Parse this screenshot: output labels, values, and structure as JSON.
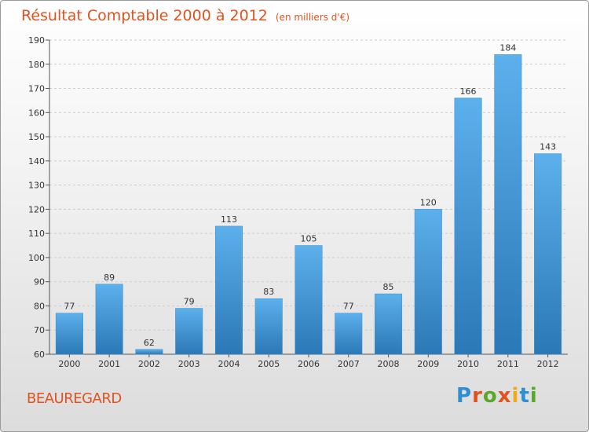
{
  "title": "Résultat Comptable 2000 à 2012",
  "subtitle": "(en milliers d'€)",
  "place": "BEAUREGARD",
  "logo": {
    "text": "Proxiti",
    "letter_colors": [
      "#2e8fd0",
      "#e0531f",
      "#5aa829",
      "#e0531f",
      "#f0a81c",
      "#2e8fd0",
      "#5aa829"
    ]
  },
  "colors": {
    "bar_light": "#5cb0ec",
    "bar_dark": "#2b78b6",
    "title": "#e0531f",
    "grid": "#cccccc"
  },
  "chart_data": {
    "type": "bar",
    "title": "Résultat Comptable 2000 à 2012",
    "subtitle": "(en milliers d'€)",
    "categories": [
      "2000",
      "2001",
      "2002",
      "2003",
      "2004",
      "2005",
      "2006",
      "2007",
      "2008",
      "2009",
      "2010",
      "2011",
      "2012"
    ],
    "values": [
      77,
      89,
      62,
      79,
      113,
      83,
      105,
      77,
      85,
      120,
      166,
      184,
      143
    ],
    "ylim": [
      60,
      190
    ],
    "yticks": [
      60,
      70,
      80,
      90,
      100,
      110,
      120,
      130,
      140,
      150,
      160,
      170,
      180,
      190
    ],
    "xlabel": "",
    "ylabel": "",
    "grid": "horizontal dashed",
    "data_labels": true
  }
}
